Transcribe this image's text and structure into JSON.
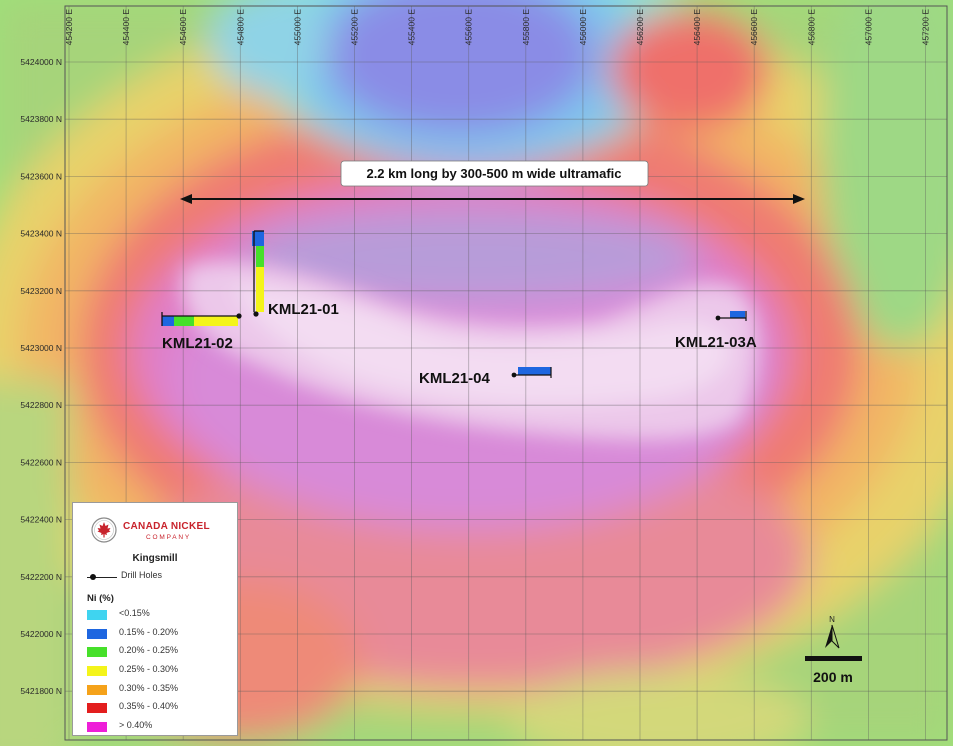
{
  "map": {
    "x_ticks": [
      "454200 E",
      "454400 E",
      "454600 E",
      "454800 E",
      "455000 E",
      "455200 E",
      "455400 E",
      "455600 E",
      "455800 E",
      "456000 E",
      "456200 E",
      "456400 E",
      "456600 E",
      "456800 E",
      "457000 E",
      "457200 E"
    ],
    "y_ticks": [
      "5424000 N",
      "5423800 N",
      "5423600 N",
      "5423400 N",
      "5423200 N",
      "5423000 N",
      "5422800 N",
      "5422600 N",
      "5422400 N",
      "5422200 N",
      "5422000 N",
      "5421800 N"
    ],
    "annotation": "2.2 km long by 300-500 m wide ultramafic",
    "drill_holes": [
      {
        "name": "KML21-01"
      },
      {
        "name": "KML21-02"
      },
      {
        "name": "KML21-03A"
      },
      {
        "name": "KML21-04"
      }
    ],
    "scale_bar": "200 m",
    "north_label": "N"
  },
  "legend": {
    "company_name": "CANADA NICKEL",
    "company_sub": "COMPANY",
    "title": "Kingsmill",
    "drill_label": "Drill Holes",
    "ni_title": "Ni (%)",
    "classes": [
      {
        "label": "<0.15%",
        "color": "#3fd4f0"
      },
      {
        "label": "0.15% - 0.20%",
        "color": "#1e66e0"
      },
      {
        "label": "0.20% - 0.25%",
        "color": "#46e02a"
      },
      {
        "label": "0.25% - 0.30%",
        "color": "#f4f41a"
      },
      {
        "label": "0.30% - 0.35%",
        "color": "#f5a21a"
      },
      {
        "label": "0.35% - 0.40%",
        "color": "#e31e1e"
      },
      {
        "label": "> 0.40%",
        "color": "#ee1ed8"
      }
    ]
  },
  "colors": {
    "accent_red": "#c8232c",
    "background_magenta": "#d98ad8",
    "background_blue": "#8a8ce6"
  }
}
